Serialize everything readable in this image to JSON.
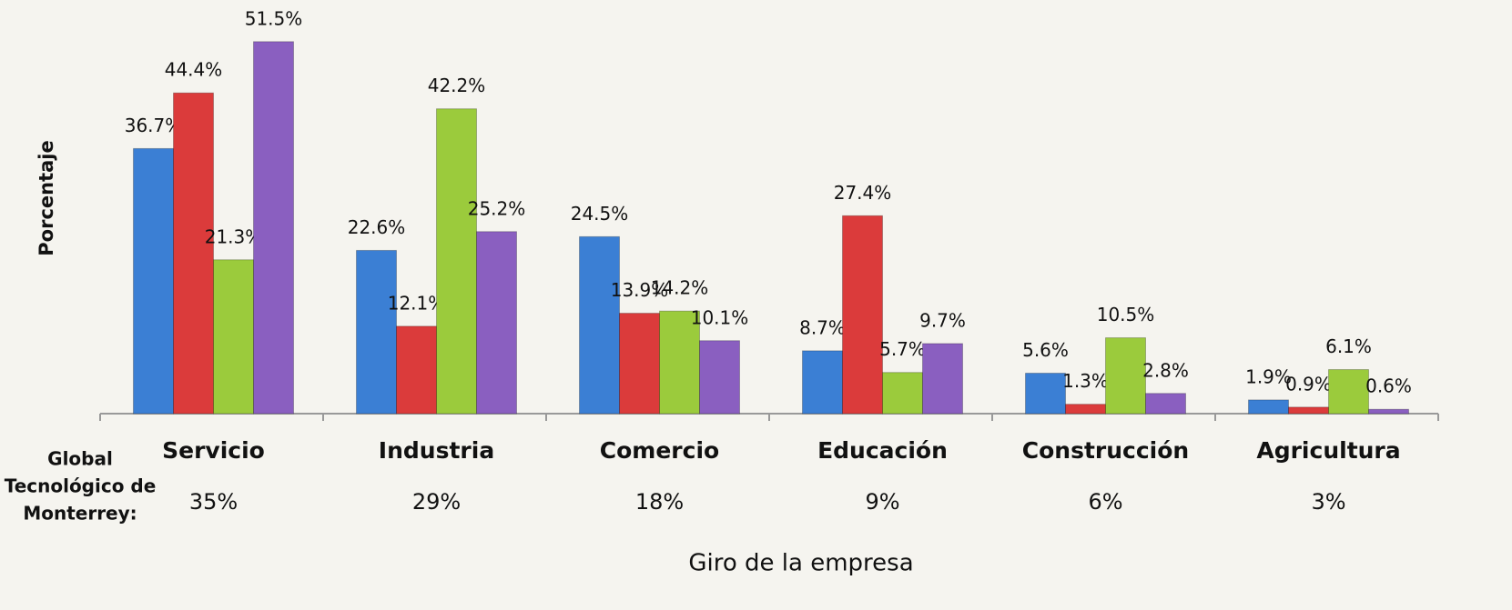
{
  "chart_data": {
    "type": "bar",
    "categories": [
      "Servicio",
      "Industria",
      "Comercio",
      "Educación",
      "Construcción",
      "Agricultura"
    ],
    "series": [
      {
        "color": "#3b7fd4",
        "values": [
          36.7,
          22.6,
          24.5,
          8.7,
          5.6,
          1.9
        ],
        "value_labels": [
          "36.7%",
          "22.6%",
          "24.5%",
          "8.7%",
          "5.6%",
          "1.9%"
        ]
      },
      {
        "color": "#db3b3b",
        "values": [
          44.4,
          12.1,
          13.9,
          27.4,
          1.3,
          0.9
        ],
        "value_labels": [
          "44.4%",
          "12.1%",
          "13.9%",
          "27.4%",
          "1.3%",
          "0.9%"
        ]
      },
      {
        "color": "#9bcb3c",
        "values": [
          21.3,
          42.2,
          14.2,
          5.7,
          10.5,
          6.1
        ],
        "value_labels": [
          "21.3%",
          "42.2%",
          "14.2%",
          "5.7%",
          "10.5%",
          "6.1%"
        ]
      },
      {
        "color": "#8a5fc0",
        "values": [
          51.5,
          25.2,
          10.1,
          9.7,
          2.8,
          0.6
        ],
        "value_labels": [
          "51.5%",
          "25.2%",
          "10.1%",
          "9.7%",
          "2.8%",
          "0.6%"
        ]
      }
    ],
    "ylim": [
      0,
      55
    ],
    "y_label": "Porcentaje",
    "x_label": "Giro de la empresa",
    "global_row": {
      "label": [
        "Global",
        "Tecnológico de",
        "Monterrey:"
      ],
      "values": [
        "35%",
        "29%",
        "18%",
        "9%",
        "6%",
        "3%"
      ]
    }
  }
}
